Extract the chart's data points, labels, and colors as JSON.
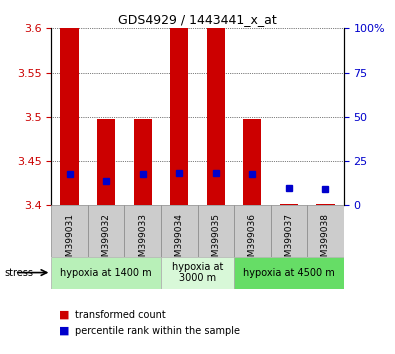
{
  "title": "GDS4929 / 1443441_x_at",
  "samples": [
    "GSM399031",
    "GSM399032",
    "GSM399033",
    "GSM399034",
    "GSM399035",
    "GSM399036",
    "GSM399037",
    "GSM399038"
  ],
  "red_bar_top": [
    3.6,
    3.497,
    3.497,
    3.6,
    3.6,
    3.497,
    3.402,
    3.402
  ],
  "red_bar_bottom": [
    3.4,
    3.4,
    3.4,
    3.4,
    3.4,
    3.4,
    3.4,
    3.4
  ],
  "blue_dot_y": [
    3.435,
    3.428,
    3.435,
    3.437,
    3.437,
    3.435,
    3.42,
    3.419
  ],
  "ylim_left": [
    3.4,
    3.6
  ],
  "ylim_right": [
    0,
    100
  ],
  "yticks_left": [
    3.4,
    3.45,
    3.5,
    3.55,
    3.6
  ],
  "yticks_right": [
    0,
    25,
    50,
    75,
    100
  ],
  "ytick_labels_left": [
    "3.4",
    "3.45",
    "3.5",
    "3.55",
    "3.6"
  ],
  "ytick_labels_right": [
    "0",
    "25",
    "50",
    "75",
    "100%"
  ],
  "groups": [
    {
      "label": "hypoxia at 1400 m",
      "start": 0,
      "end": 3,
      "color": "#b8f0b8"
    },
    {
      "label": "hypoxia at\n3000 m",
      "start": 3,
      "end": 5,
      "color": "#d8f8d8"
    },
    {
      "label": "hypoxia at 4500 m",
      "start": 5,
      "end": 8,
      "color": "#66dd66"
    }
  ],
  "stress_label": "stress",
  "legend_red_label": "transformed count",
  "legend_blue_label": "percentile rank within the sample",
  "bar_color": "#cc0000",
  "dot_color": "#0000cc",
  "bar_width": 0.5,
  "grid_color": "#000000",
  "left_tick_color": "#cc0000",
  "right_tick_color": "#0000cc",
  "bg_color": "#ffffff",
  "sample_bg_color": "#cccccc"
}
